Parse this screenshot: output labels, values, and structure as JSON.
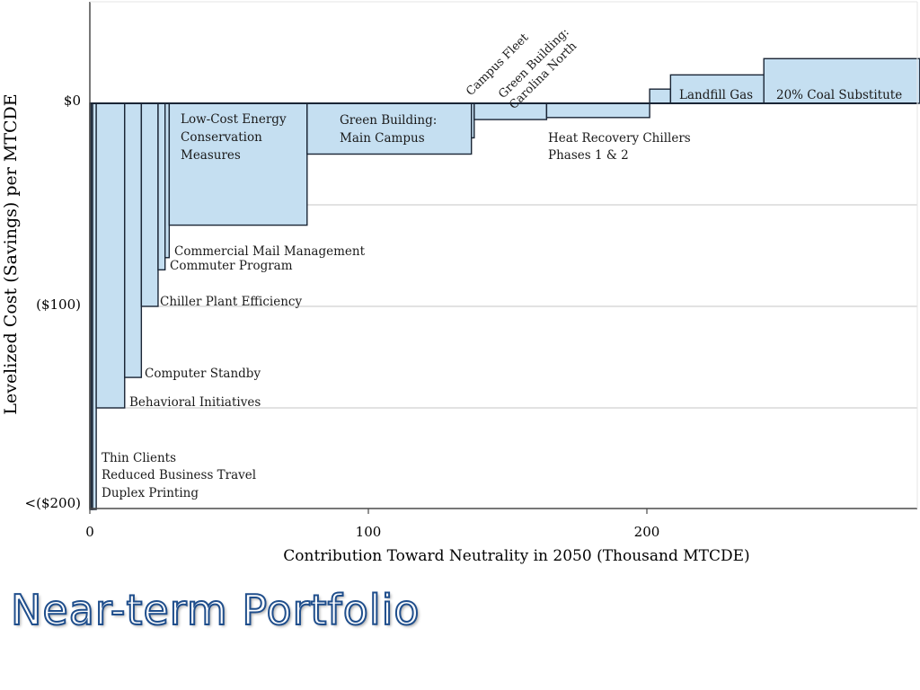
{
  "slide": {
    "title": "Near-term Portfolio"
  },
  "chart_data": {
    "type": "bar",
    "subtype": "marginal-abatement-cost-curve",
    "xlabel": "Contribution Toward Neutrality in 2050 (Thousand MTCDE)",
    "ylabel": "Levelized Cost (Savings) per MTCDE",
    "xlim": [
      0,
      298
    ],
    "ylim": [
      -200,
      50
    ],
    "x_ticks": [
      {
        "value": 0,
        "label": "0"
      },
      {
        "value": 100,
        "label": "100"
      },
      {
        "value": 200,
        "label": "200"
      }
    ],
    "y_ticks": [
      {
        "value": 0,
        "label": "$0"
      },
      {
        "value": -100,
        "label": "($100)"
      },
      {
        "value": -200,
        "label": "<($200)"
      }
    ],
    "y_gridlines": [
      0,
      -50,
      -100,
      -150
    ],
    "bar_color": "#c5dff1",
    "edge_color": "#1a2535",
    "measures": [
      {
        "name": "Thin Clients",
        "x_start": 0.0,
        "x_end": 0.5,
        "value": -200
      },
      {
        "name": "Reduced Business Travel",
        "x_start": 0.5,
        "x_end": 1.0,
        "value": -200
      },
      {
        "name": "Duplex Printing",
        "x_start": 1.0,
        "x_end": 2.3,
        "value": -200
      },
      {
        "name": "Behavioral Initiatives",
        "x_start": 2.3,
        "x_end": 12.5,
        "value": -150
      },
      {
        "name": "Computer Standby",
        "x_start": 12.5,
        "x_end": 18.5,
        "value": -135
      },
      {
        "name": "Chiller Plant Efficiency",
        "x_start": 18.5,
        "x_end": 24.5,
        "value": -100
      },
      {
        "name": "Commuter Program",
        "x_start": 24.5,
        "x_end": 27.0,
        "value": -82
      },
      {
        "name": "Commercial Mail Management",
        "x_start": 27.0,
        "x_end": 28.5,
        "value": -76
      },
      {
        "name": "Low-Cost Energy Conservation Measures",
        "x_start": 28.5,
        "x_end": 78.0,
        "value": -60
      },
      {
        "name": "Green Building: Main Campus",
        "x_start": 78.0,
        "x_end": 137.0,
        "value": -25
      },
      {
        "name": "Campus Fleet",
        "x_start": 137.0,
        "x_end": 138.0,
        "value": -17
      },
      {
        "name": "Green Building: Carolina North",
        "x_start": 138.0,
        "x_end": 164.0,
        "value": -8
      },
      {
        "name": "Heat Recovery Chillers Phases 1 & 2",
        "x_start": 164.0,
        "x_end": 201.0,
        "value": -7
      },
      {
        "name": "Landfill Gas (step)",
        "x_start": 201.0,
        "x_end": 208.5,
        "value": 7
      },
      {
        "name": "Landfill Gas",
        "x_start": 208.5,
        "x_end": 242.0,
        "value": 14
      },
      {
        "name": "20% Coal Substitute",
        "x_start": 242.0,
        "x_end": 298.0,
        "value": 22
      }
    ],
    "labels": {
      "low_cost": [
        "Low-Cost Energy",
        "Conservation",
        "Measures"
      ],
      "green_main": [
        "Green Building:",
        "Main Campus"
      ],
      "commercial_mail": "Commercial Mail Management",
      "commuter": "Commuter Program",
      "chiller_plant": "Chiller Plant Efficiency",
      "computer_standby": "Computer Standby",
      "behavioral": "Behavioral Initiatives",
      "thin_group": [
        "Thin Clients",
        "Reduced Business Travel",
        "Duplex Printing"
      ],
      "campus_fleet": "Campus Fleet",
      "green_north": [
        "Green Building:",
        "Carolina North"
      ],
      "heat_recovery": [
        "Heat Recovery Chillers",
        "Phases 1 & 2"
      ],
      "landfill": "Landfill Gas",
      "coal": "20% Coal Substitute"
    }
  }
}
